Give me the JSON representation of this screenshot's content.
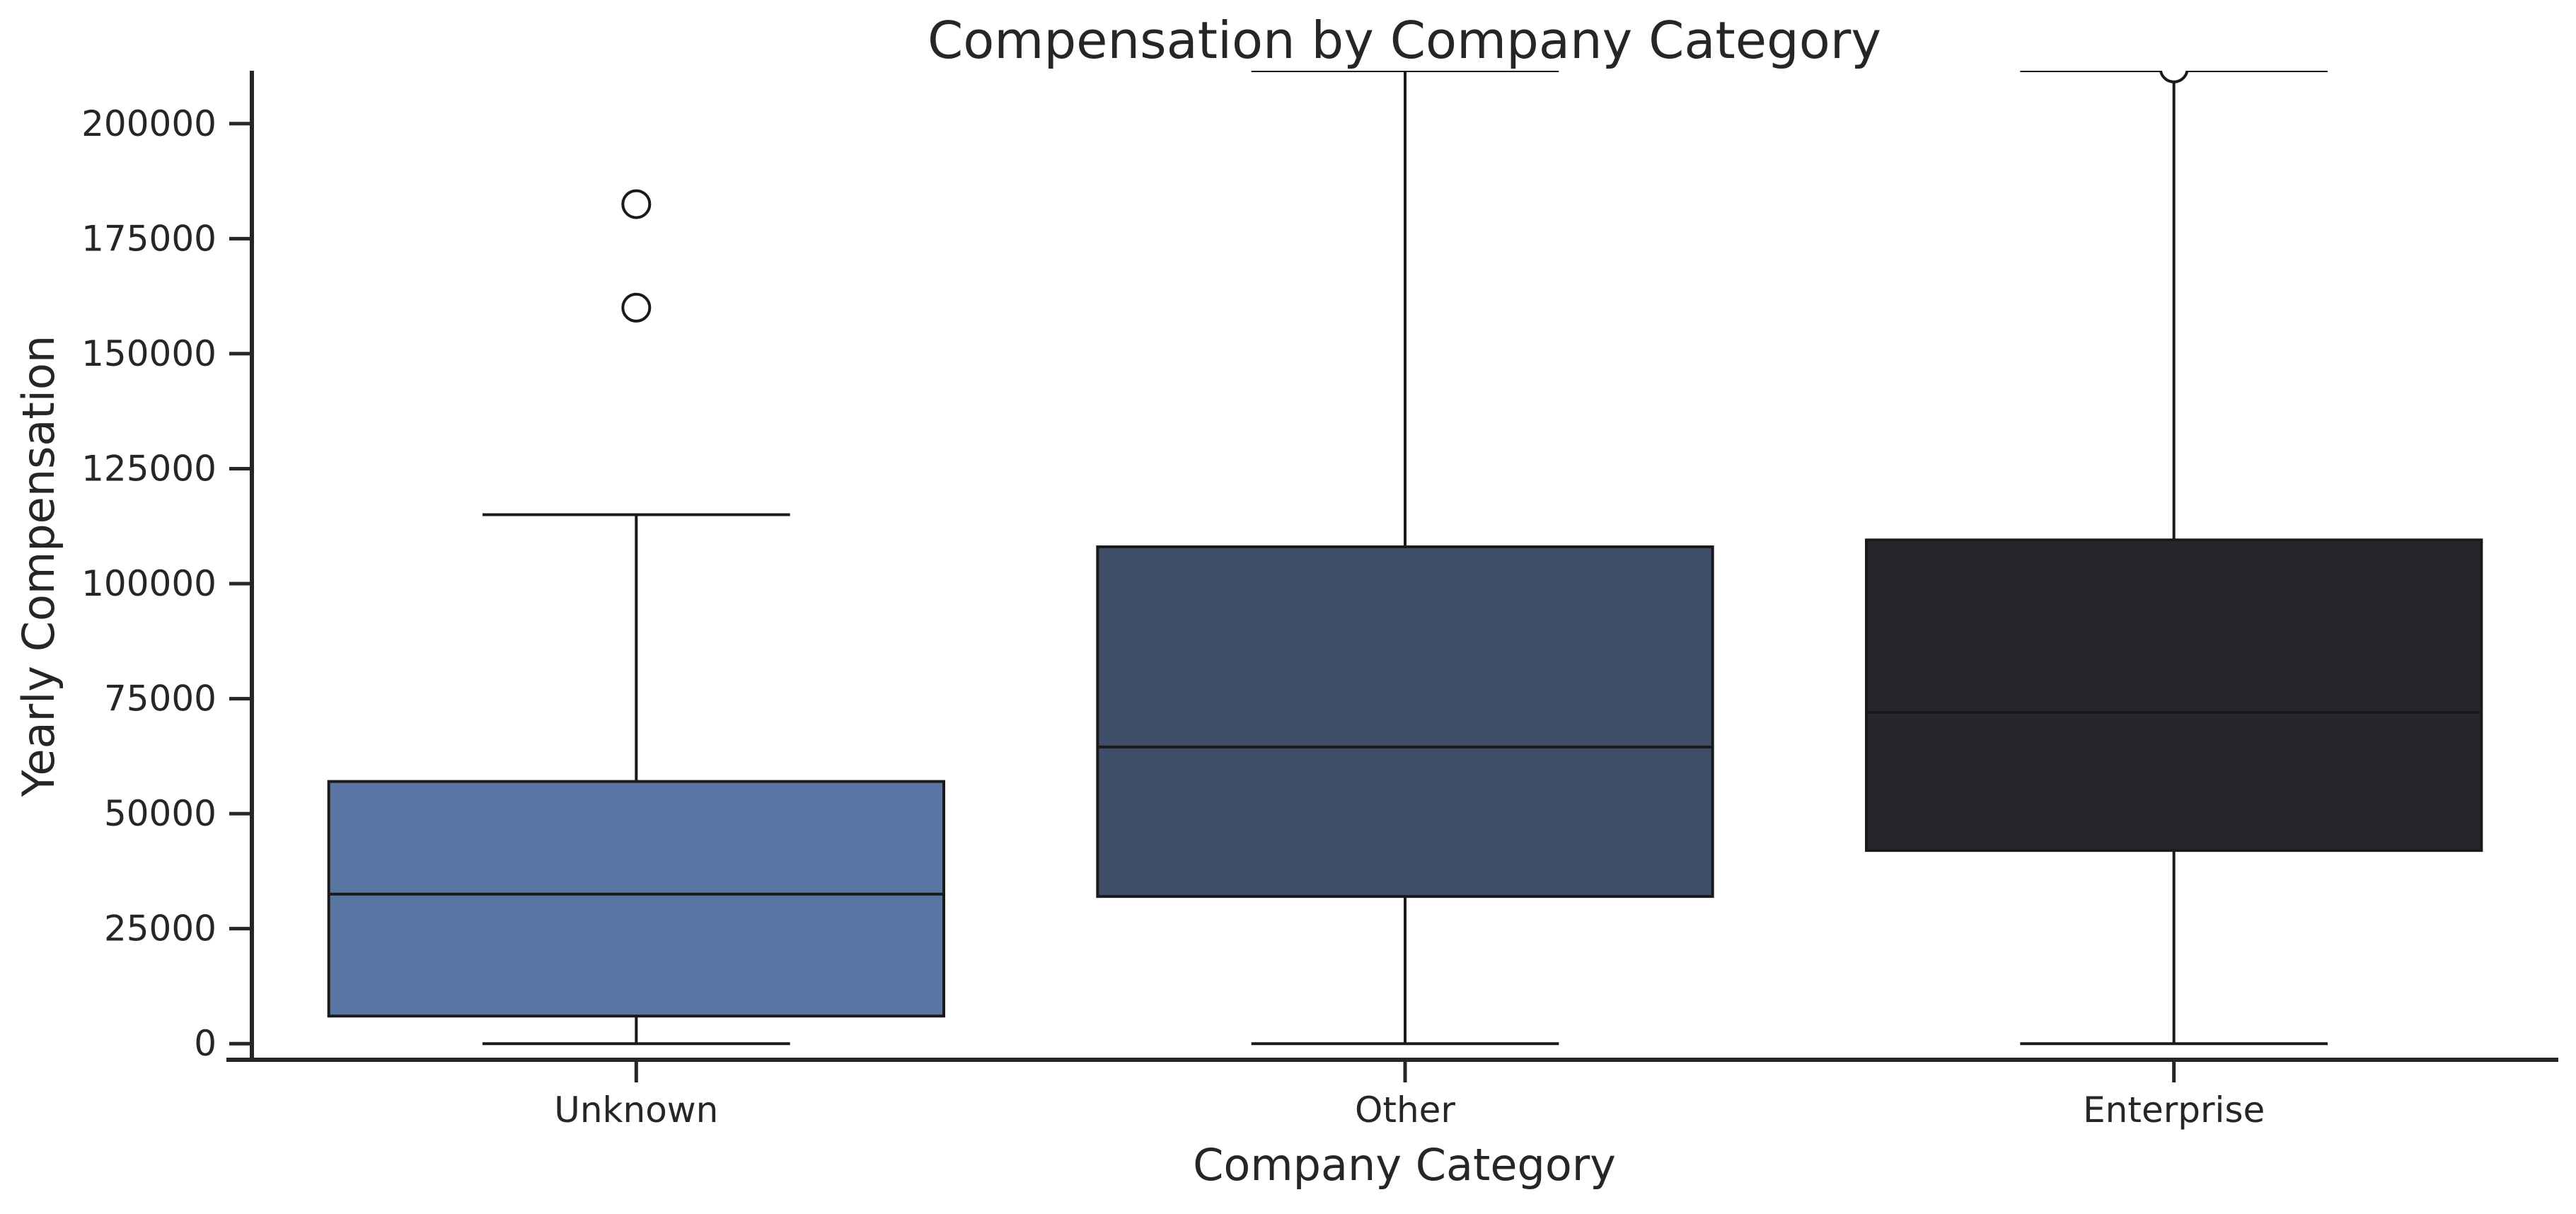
{
  "chart_data": {
    "type": "box",
    "title": "Compensation by Company Category",
    "xlabel": "Company Category",
    "ylabel": "Yearly Compensation",
    "ylim": [
      -3500,
      211500
    ],
    "yticks": [
      0,
      25000,
      50000,
      75000,
      100000,
      125000,
      150000,
      175000,
      200000
    ],
    "ytick_labels": [
      "0",
      "25000",
      "50000",
      "75000",
      "100000",
      "125000",
      "150000",
      "175000",
      "200000"
    ],
    "grid": false,
    "categories": [
      "Unknown",
      "Other",
      "Enterprise"
    ],
    "boxes": [
      {
        "category": "Unknown",
        "color": "#5975a4",
        "whisker_low": 0,
        "q1": 6000,
        "median": 32500,
        "q3": 57000,
        "whisker_high": 115000,
        "outliers": [
          160000,
          182500
        ]
      },
      {
        "category": "Other",
        "color": "#3f4e69",
        "whisker_low": 0,
        "q1": 32000,
        "median": 64500,
        "q3": 108000,
        "whisker_high": 211500,
        "outliers": []
      },
      {
        "category": "Enterprise",
        "color": "#25272b",
        "whisker_low": 0,
        "q1": 42000,
        "median": 72000,
        "q3": 109500,
        "whisker_high": 211500,
        "outliers": [
          212000
        ]
      }
    ],
    "outlier_marker": "open-circle"
  }
}
